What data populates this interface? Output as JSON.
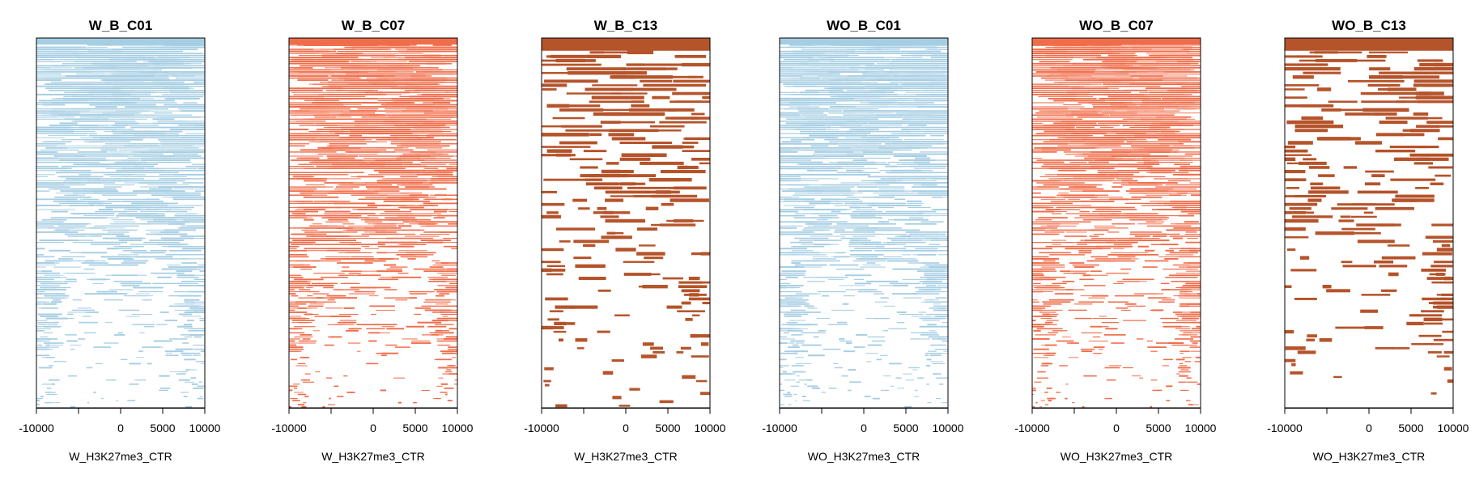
{
  "figure": {
    "description_type": "multi-panel heatmap",
    "color_legend": {
      "C01": "#a6cee3",
      "C07": "#f06d4a",
      "C13": "#b5532a"
    }
  },
  "chart_data": [
    {
      "type": "heatmap",
      "title": "W_B_C01",
      "xlabel": "W_H3K27me3_CTR",
      "xlim": [
        -10000,
        10000
      ],
      "xticks": [
        -10000,
        -5000,
        0,
        5000,
        10000
      ],
      "xtick_labels": [
        "-10000",
        "",
        "0",
        "5000",
        "10000"
      ],
      "color": "#a6cee3",
      "rows": 180,
      "pattern": "dense-sorted",
      "seed": 11,
      "grid": false
    },
    {
      "type": "heatmap",
      "title": "W_B_C07",
      "xlabel": "W_H3K27me3_CTR",
      "xlim": [
        -10000,
        10000
      ],
      "xticks": [
        -10000,
        -5000,
        0,
        5000,
        10000
      ],
      "xtick_labels": [
        "-10000",
        "",
        "0",
        "5000",
        "10000"
      ],
      "color": "#f06d4a",
      "rows": 180,
      "pattern": "dense-sorted",
      "seed": 23,
      "grid": false
    },
    {
      "type": "heatmap",
      "title": "W_B_C13",
      "xlabel": "W_H3K27me3_CTR",
      "xlim": [
        -10000,
        10000
      ],
      "xticks": [
        -10000,
        -5000,
        0,
        5000,
        10000
      ],
      "xtick_labels": [
        "-10000",
        "",
        "0",
        "5000",
        "10000"
      ],
      "color": "#b5532a",
      "rows": 90,
      "pattern": "sparse-sorted",
      "seed": 37,
      "grid": false
    },
    {
      "type": "heatmap",
      "title": "WO_B_C01",
      "xlabel": "WO_H3K27me3_CTR",
      "xlim": [
        -10000,
        10000
      ],
      "xticks": [
        -10000,
        -5000,
        0,
        5000,
        10000
      ],
      "xtick_labels": [
        "-10000",
        "",
        "0",
        "5000",
        "10000"
      ],
      "color": "#a6cee3",
      "rows": 180,
      "pattern": "dense-sorted",
      "seed": 41,
      "grid": false
    },
    {
      "type": "heatmap",
      "title": "WO_B_C07",
      "xlabel": "WO_H3K27me3_CTR",
      "xlim": [
        -10000,
        10000
      ],
      "xticks": [
        -10000,
        -5000,
        0,
        5000,
        10000
      ],
      "xtick_labels": [
        "-10000",
        "",
        "0",
        "5000",
        "10000"
      ],
      "color": "#f06d4a",
      "rows": 180,
      "pattern": "dense-sorted",
      "seed": 53,
      "grid": false
    },
    {
      "type": "heatmap",
      "title": "WO_B_C13",
      "xlabel": "WO_H3K27me3_CTR",
      "xlim": [
        -10000,
        10000
      ],
      "xticks": [
        -10000,
        -5000,
        0,
        5000,
        10000
      ],
      "xtick_labels": [
        "-10000",
        "",
        "0",
        "5000",
        "10000"
      ],
      "color": "#b5532a",
      "rows": 90,
      "pattern": "sparse-sorted",
      "seed": 67,
      "grid": false
    }
  ]
}
